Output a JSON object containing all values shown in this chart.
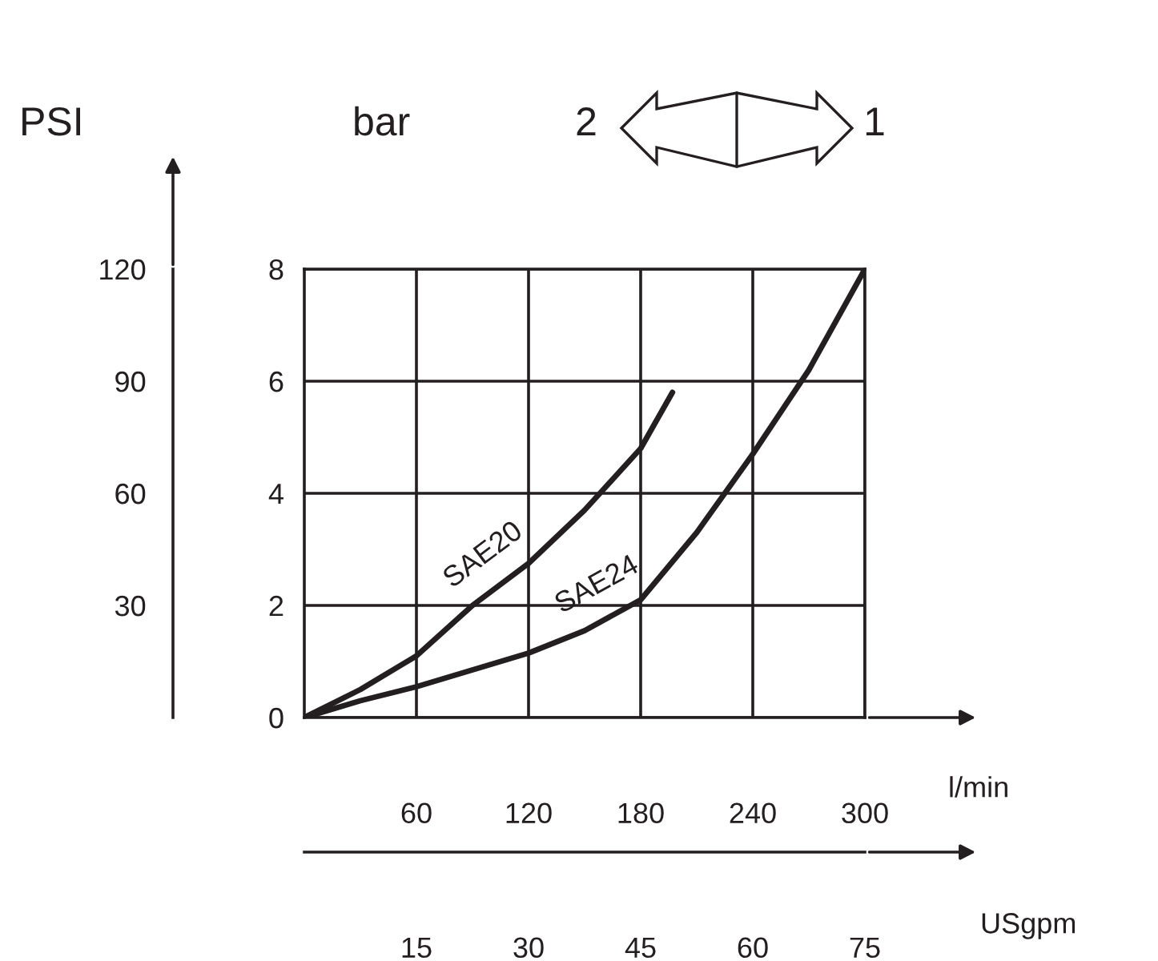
{
  "chart_data": {
    "type": "line",
    "xlabel": "l/min",
    "ylabel": "bar",
    "y2label": "PSI",
    "x2label": "USgpm",
    "xlim": [
      0,
      300
    ],
    "xticks": [
      60,
      120,
      180,
      240,
      300
    ],
    "ylim": [
      0,
      8
    ],
    "yticks": [
      0,
      2,
      4,
      6,
      8
    ],
    "y2lim": [
      0,
      120
    ],
    "y2ticks": [
      30,
      60,
      90,
      120
    ],
    "x2lim": [
      0,
      75
    ],
    "x2ticks": [
      15,
      30,
      45,
      60,
      75
    ],
    "grid": true,
    "marker": "none",
    "line_style": "solid",
    "annotations": [
      "2",
      "1"
    ],
    "series": [
      {
        "name": "SAE20",
        "color": "#231f20",
        "x": [
          0,
          30,
          60,
          90,
          120,
          150,
          180,
          197
        ],
        "values": [
          0,
          0.5,
          1.1,
          2.0,
          2.75,
          3.7,
          4.8,
          5.8
        ]
      },
      {
        "name": "SAE24",
        "color": "#231f20",
        "x": [
          0,
          30,
          60,
          90,
          120,
          150,
          180,
          210,
          240,
          270,
          300
        ],
        "values": [
          0,
          0.3,
          0.55,
          0.85,
          1.15,
          1.55,
          2.1,
          3.3,
          4.7,
          6.2,
          8.0
        ]
      }
    ]
  }
}
